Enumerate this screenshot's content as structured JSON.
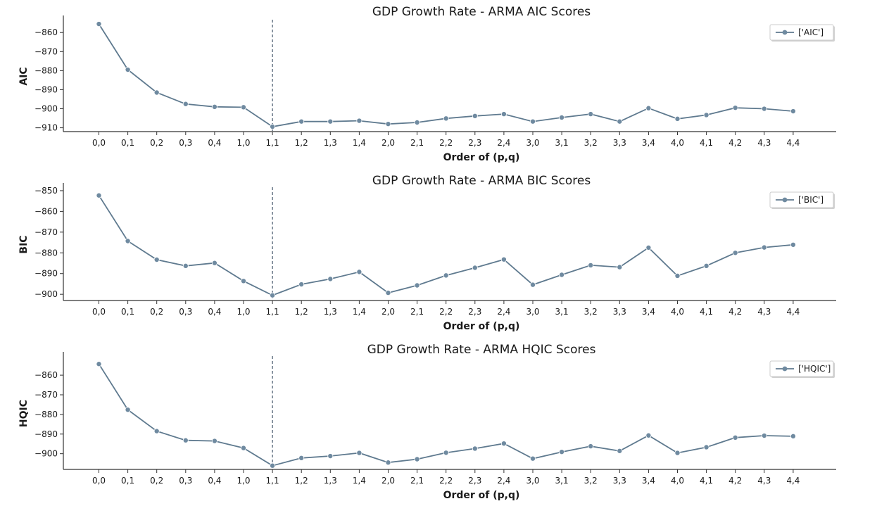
{
  "colors": {
    "series": "#5f7a8f",
    "marker": "#6f8aa0",
    "axis": "#333333",
    "vline": "#34495e"
  },
  "chart_data": [
    {
      "type": "line",
      "title": "GDP Growth Rate - ARMA AIC Scores",
      "xlabel": "Order of (p,q)",
      "ylabel": "AIC",
      "categories": [
        "0,0",
        "0,1",
        "0,2",
        "0,3",
        "0,4",
        "1,0",
        "1,1",
        "1,2",
        "1,3",
        "1,4",
        "2,0",
        "2,1",
        "2,2",
        "2,3",
        "2,4",
        "3,0",
        "3,1",
        "3,2",
        "3,3",
        "3,4",
        "4,0",
        "4,1",
        "4,2",
        "4,3",
        "4,4"
      ],
      "series": [
        {
          "name": "['AIC']",
          "values": [
            -855.5,
            -879.5,
            -891.5,
            -897.5,
            -899,
            -899.2,
            -909.4,
            -906.7,
            -906.7,
            -906.3,
            -908,
            -907.2,
            -905.1,
            -903.8,
            -902.8,
            -906.7,
            -904.6,
            -902.8,
            -906.7,
            -899.7,
            -905.3,
            -903.3,
            -899.5,
            -900,
            -901.3
          ]
        }
      ],
      "yticks": [
        -910,
        -900,
        -890,
        -880,
        -870,
        -860
      ],
      "ylim": [
        -912,
        -854
      ],
      "vline_at": "1,1",
      "legend": "top-right"
    },
    {
      "type": "line",
      "title": "GDP Growth Rate - ARMA BIC Scores",
      "xlabel": "Order of (p,q)",
      "ylabel": "BIC",
      "categories": [
        "0,0",
        "0,1",
        "0,2",
        "0,3",
        "0,4",
        "1,0",
        "1,1",
        "1,2",
        "1,3",
        "1,4",
        "2,0",
        "2,1",
        "2,2",
        "2,3",
        "2,4",
        "3,0",
        "3,1",
        "3,2",
        "3,3",
        "3,4",
        "4,0",
        "4,1",
        "4,2",
        "4,3",
        "4,4"
      ],
      "series": [
        {
          "name": "['BIC']",
          "values": [
            -852.3,
            -874.3,
            -883.3,
            -886.3,
            -884.9,
            -893.6,
            -900.5,
            -895.2,
            -892.6,
            -889.2,
            -899.3,
            -895.7,
            -890.9,
            -887.2,
            -883.2,
            -895.4,
            -890.6,
            -886,
            -886.9,
            -877.5,
            -891.1,
            -886.3,
            -880,
            -877.4,
            -876.1
          ]
        }
      ],
      "yticks": [
        -900,
        -890,
        -880,
        -870,
        -860,
        -850
      ],
      "ylim": [
        -903,
        -849
      ],
      "vline_at": "1,1",
      "legend": "top-right"
    },
    {
      "type": "line",
      "title": "GDP Growth Rate - ARMA HQIC Scores",
      "xlabel": "Order of (p,q)",
      "ylabel": "HQIC",
      "categories": [
        "0,0",
        "0,1",
        "0,2",
        "0,3",
        "0,4",
        "1,0",
        "1,1",
        "1,2",
        "1,3",
        "1,4",
        "2,0",
        "2,1",
        "2,2",
        "2,3",
        "2,4",
        "3,0",
        "3,1",
        "3,2",
        "3,3",
        "3,4",
        "4,0",
        "4,1",
        "4,2",
        "4,3",
        "4,4"
      ],
      "series": [
        {
          "name": "['HQIC']",
          "values": [
            -854.3,
            -877.6,
            -888.5,
            -893.2,
            -893.5,
            -897.1,
            -906.1,
            -902.2,
            -901.2,
            -899.6,
            -904.5,
            -902.8,
            -899.5,
            -897.4,
            -894.8,
            -902.5,
            -899.1,
            -896.2,
            -898.6,
            -890.7,
            -899.6,
            -896.7,
            -891.8,
            -890.8,
            -891.1
          ]
        }
      ],
      "yticks": [
        -900,
        -890,
        -880,
        -870,
        -860
      ],
      "ylim": [
        -908,
        -851
      ],
      "vline_at": "1,1",
      "legend": "top-right"
    }
  ]
}
